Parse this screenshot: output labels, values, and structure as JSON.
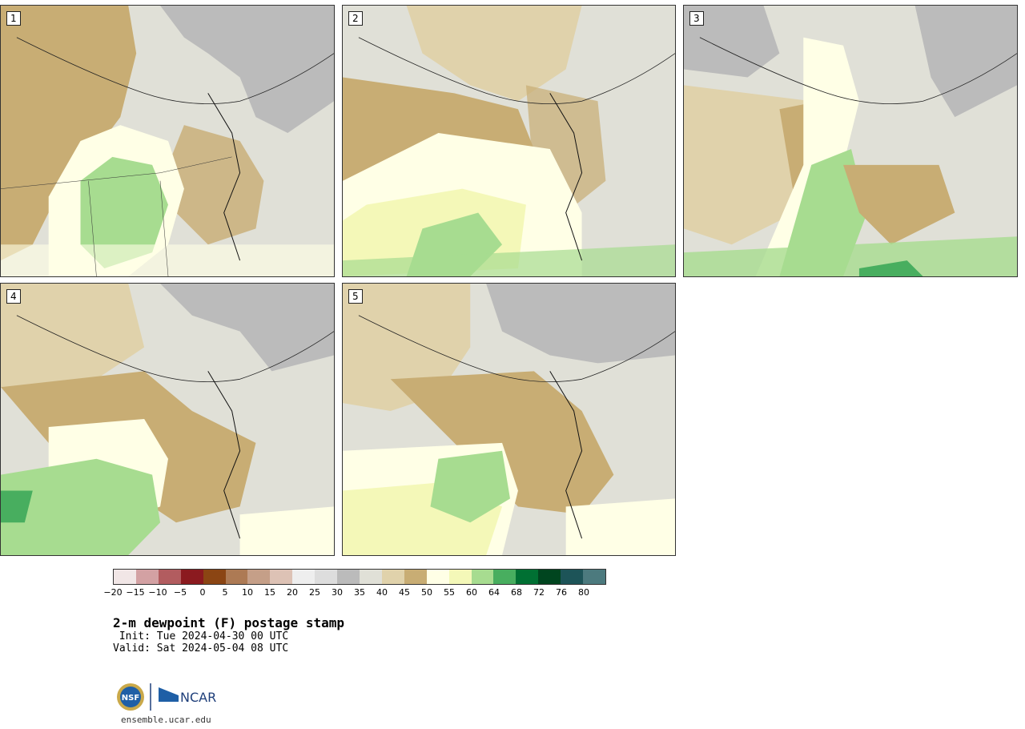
{
  "figure": {
    "title": "2-m dewpoint (F) postage stamp",
    "init": " Init: Tue 2024-04-30 00 UTC",
    "valid": "Valid: Sat 2024-05-04 08 UTC",
    "footer": "ensemble.ucar.edu"
  },
  "panels": [
    {
      "label": "1"
    },
    {
      "label": "2"
    },
    {
      "label": "3"
    },
    {
      "label": "4"
    },
    {
      "label": "5"
    }
  ],
  "colorbar": {
    "colors": [
      "#f1e6e6",
      "#d3a1a3",
      "#b25c5f",
      "#8b1a1f",
      "#8b4513",
      "#ad7a54",
      "#c59f88",
      "#ddc2b5",
      "#eeeeee",
      "#dddddd",
      "#bbbbbb",
      "#e0e0d7",
      "#e0d2ab",
      "#c8ad74",
      "#ffffe6",
      "#f4f8b8",
      "#a7dc90",
      "#48ae5f",
      "#007033",
      "#00451f",
      "#1d5458",
      "#4c7a7e"
    ],
    "tick_labels": [
      "−20",
      "−15",
      "−10",
      "−5",
      "0",
      "5",
      "10",
      "15",
      "20",
      "25",
      "30",
      "35",
      "40",
      "45",
      "50",
      "55",
      "60",
      "64",
      "68",
      "72",
      "76",
      "80"
    ]
  },
  "logos": {
    "nsf_text": "NSF",
    "ncar_text": "NCAR"
  }
}
